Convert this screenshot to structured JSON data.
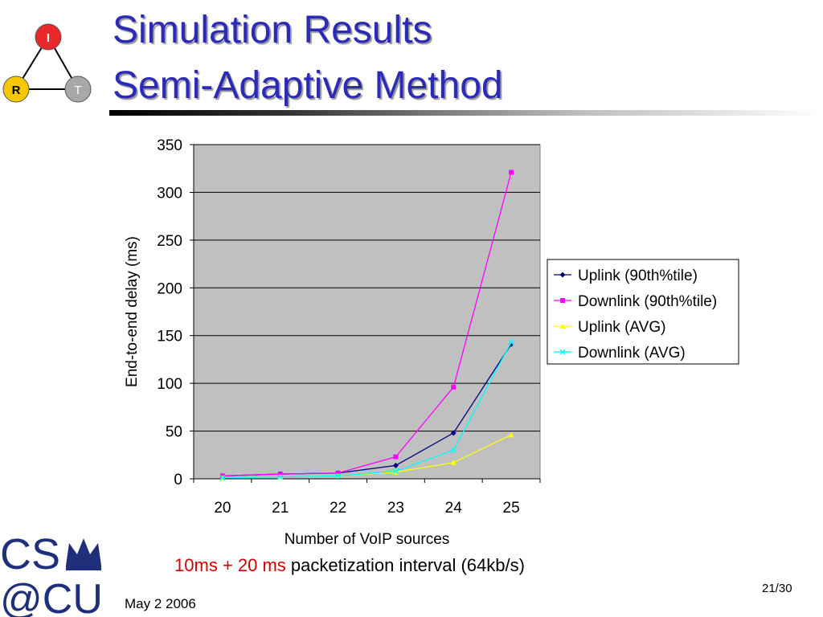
{
  "slide": {
    "title_line1": "Simulation Results",
    "title_line2": "Semi-Adaptive Method",
    "caption_highlight": "10ms + 20 ms",
    "caption_rest": " packetization interval (64kb/s)",
    "date": "May 2 2006",
    "page": "21/30"
  },
  "logo": {
    "nodes": [
      {
        "label": "I",
        "color": "#e8282a"
      },
      {
        "label": "R",
        "color": "#f5c800"
      },
      {
        "label": "T",
        "color": "#a8a8a8"
      }
    ],
    "text_cs": "CS",
    "text_cu": "@CU",
    "color": "#1f2f7a"
  },
  "chart_data": {
    "type": "line",
    "categories": [
      "20",
      "21",
      "22",
      "23",
      "24",
      "25"
    ],
    "series": [
      {
        "name": "Uplink (90th%tile)",
        "color": "#000080",
        "marker": "diamond",
        "values": [
          3,
          5,
          6,
          14,
          48,
          141
        ]
      },
      {
        "name": "Downlink (90th%tile)",
        "color": "#ff00ff",
        "marker": "square",
        "values": [
          3,
          5,
          6,
          23,
          96,
          321
        ]
      },
      {
        "name": "Uplink (AVG)",
        "color": "#ffff00",
        "marker": "triangle",
        "values": [
          1,
          2,
          3,
          7,
          17,
          46
        ]
      },
      {
        "name": "Downlink (AVG)",
        "color": "#00ffff",
        "marker": "x",
        "values": [
          1,
          2,
          3,
          8,
          30,
          143
        ]
      }
    ],
    "xlabel": "Number of VoIP sources",
    "ylabel": "End-to-end delay (ms)",
    "ylim": [
      0,
      350
    ],
    "yticks": [
      0,
      50,
      100,
      150,
      200,
      250,
      300,
      350
    ],
    "grid": true,
    "plot_background": "#c0c0c0",
    "legend_position": "right"
  }
}
